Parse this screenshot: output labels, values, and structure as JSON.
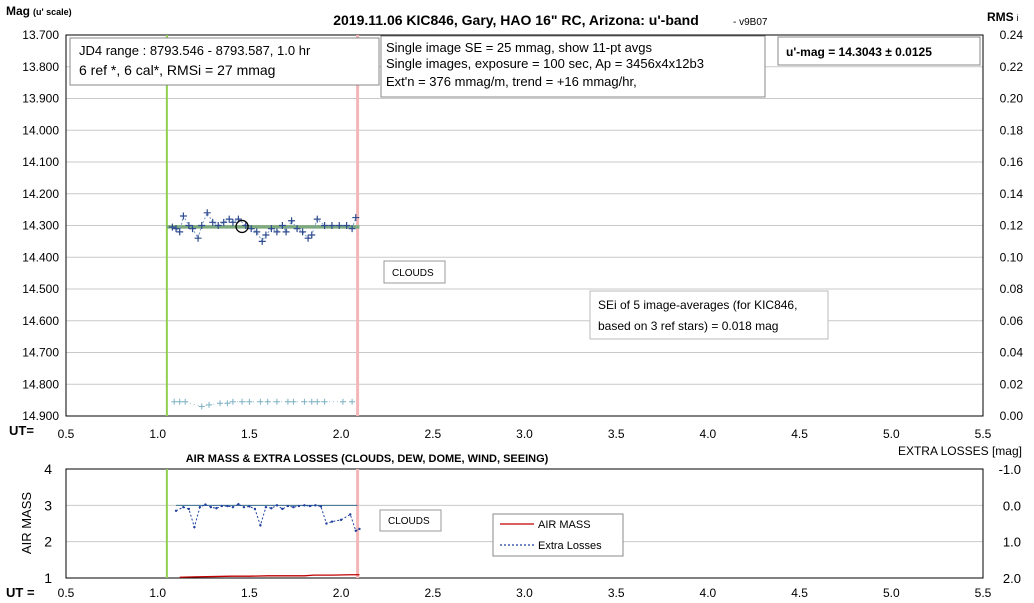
{
  "chart_data": [
    {
      "type": "scatter",
      "title": "2019.11.06 KIC846, Gary, HAO 16\" RC, Arizona: u'-band",
      "version": "- v9B07",
      "ylabel_main": "Mag",
      "ylabel_sub": "(u' scale)",
      "y2label": "RMS",
      "y2label_suffix": "i",
      "xlabel": "UT=",
      "x_ticks": [
        "0.5",
        "1.0",
        "1.5",
        "2.0",
        "2.5",
        "3.0",
        "3.5",
        "4.0",
        "4.5",
        "5.0",
        "5.5"
      ],
      "xlim": [
        0.5,
        5.5
      ],
      "ylim": [
        14.9,
        13.7
      ],
      "y_ticks": [
        "13.700",
        "13.800",
        "13.900",
        "14.000",
        "14.100",
        "14.200",
        "14.300",
        "14.400",
        "14.500",
        "14.600",
        "14.700",
        "14.800",
        "14.900"
      ],
      "y2lim": [
        0.0,
        0.24
      ],
      "y2_ticks": [
        "0.24",
        "0.22",
        "0.20",
        "0.18",
        "0.16",
        "0.14",
        "0.12",
        "0.10",
        "0.08",
        "0.06",
        "0.04",
        "0.02",
        "0.00"
      ],
      "grid": true,
      "start_line_x": 1.05,
      "end_line_x": 2.09,
      "colors": {
        "start_line": "#8fd14f",
        "end_line": "#f4b6b6",
        "mag": "#2e4b8f",
        "avg_line": "#7faa7f",
        "rms": "#7fb2c4",
        "grid": "#c9c9c9"
      },
      "series": [
        {
          "x": [
            1.08,
            1.1,
            1.12,
            1.14,
            1.17,
            1.19,
            1.22,
            1.24,
            1.27,
            1.3,
            1.33,
            1.36,
            1.39,
            1.41,
            1.44,
            1.48,
            1.51,
            1.54,
            1.57,
            1.59,
            1.62,
            1.65,
            1.68,
            1.7,
            1.73,
            1.76,
            1.79,
            1.82,
            1.84,
            1.87,
            1.91,
            1.95,
            1.99,
            2.03,
            2.06,
            2.08
          ],
          "y": [
            14.305,
            14.31,
            14.32,
            14.27,
            14.3,
            14.31,
            14.34,
            14.3,
            14.26,
            14.29,
            14.3,
            14.29,
            14.28,
            14.29,
            14.28,
            14.3,
            14.31,
            14.32,
            14.35,
            14.33,
            14.31,
            14.32,
            14.3,
            14.32,
            14.285,
            14.31,
            14.32,
            14.34,
            14.33,
            14.28,
            14.3,
            14.3,
            14.3,
            14.3,
            14.31,
            14.275
          ]
        },
        {
          "x": [
            1.09,
            1.12,
            1.15,
            1.24,
            1.28,
            1.34,
            1.38,
            1.41,
            1.46,
            1.5,
            1.56,
            1.6,
            1.65,
            1.71,
            1.74,
            1.8,
            1.84,
            1.87,
            1.91,
            2.01,
            2.06
          ],
          "y": [
            0.009,
            0.009,
            0.009,
            0.006,
            0.007,
            0.008,
            0.008,
            0.009,
            0.009,
            0.009,
            0.009,
            0.009,
            0.009,
            0.009,
            0.009,
            0.009,
            0.009,
            0.009,
            0.009,
            0.009,
            0.009
          ]
        }
      ],
      "avg_mag": 14.3043,
      "avg_line_x": [
        1.05,
        2.1
      ],
      "circle_marker": {
        "x": 1.46,
        "y": 14.303
      },
      "annotations": {
        "box1_line1": "JD4 range : 8793.546 - 8793.587,  1.0  hr",
        "box1_line2": "6 ref *, 6 cal*, RMSi = 27 mmag",
        "box2_line1": "Single image SE = 25 mmag, show  11-pt avgs",
        "box2_line2": "Single images, exposure = 100 sec, Ap = 3456x4x12b3",
        "box2_line3": "Ext'n = 376 mmag/m, trend =  +16 mmag/hr,",
        "result": "u'-mag = 14.3043 ± 0.0125",
        "clouds": "CLOUDS",
        "sei_line1": "SEi of 5 image-averages (for KIC846,",
        "sei_line2": "based on 3 ref stars) = 0.018 mag"
      }
    },
    {
      "type": "line",
      "title": "AIR MASS & EXTRA LOSSES (CLOUDS, DEW, DOME, WIND, SEEING)",
      "ylabel": "AIR MASS",
      "y2label": "EXTRA LOSSES [mag]",
      "xlabel": "UT =",
      "x_ticks": [
        "0.5",
        "1.0",
        "1.5",
        "2.0",
        "2.5",
        "3.0",
        "3.5",
        "4.0",
        "4.5",
        "5.0",
        "5.5"
      ],
      "xlim": [
        0.5,
        5.5
      ],
      "ylim": [
        1,
        4
      ],
      "y_ticks": [
        "4",
        "3",
        "2",
        "1"
      ],
      "y2lim": [
        2.0,
        -1.0
      ],
      "y2_ticks": [
        "-1.0",
        "0.0",
        "1.0",
        "2.0"
      ],
      "grid": true,
      "start_line_x": 1.05,
      "end_line_x": 2.09,
      "colors": {
        "airmass": "#c00000",
        "losses": "#1f3f9f",
        "ref_line": "#3a6f8f"
      },
      "series": [
        {
          "name": "AIR MASS",
          "x": [
            1.12,
            1.2,
            1.3,
            1.4,
            1.5,
            1.6,
            1.7,
            1.8,
            1.85,
            1.95,
            2.05,
            2.1
          ],
          "y": [
            1.02,
            1.03,
            1.04,
            1.05,
            1.05,
            1.06,
            1.06,
            1.06,
            1.08,
            1.08,
            1.09,
            1.09
          ]
        },
        {
          "name": "Extra Losses",
          "x": [
            1.1,
            1.14,
            1.17,
            1.2,
            1.23,
            1.26,
            1.29,
            1.32,
            1.35,
            1.38,
            1.41,
            1.44,
            1.47,
            1.5,
            1.53,
            1.56,
            1.59,
            1.62,
            1.65,
            1.68,
            1.71,
            1.74,
            1.77,
            1.8,
            1.83,
            1.86,
            1.89,
            1.92,
            1.95,
            2.0,
            2.05,
            2.08,
            2.1
          ],
          "y": [
            0.15,
            0.05,
            0.1,
            0.6,
            0.05,
            -0.02,
            0.05,
            0.08,
            0.02,
            0.02,
            0.05,
            -0.03,
            0.05,
            0.03,
            0.1,
            0.55,
            0.05,
            0.08,
            0.0,
            0.1,
            0.02,
            0.05,
            0.02,
            0.0,
            0.02,
            0.0,
            0.03,
            0.5,
            0.45,
            0.4,
            0.25,
            0.7,
            0.65
          ]
        }
      ],
      "ref_line_y": 0.0,
      "legend": {
        "placement": "center-right"
      },
      "annotations": {
        "clouds": "CLOUDS"
      }
    }
  ]
}
